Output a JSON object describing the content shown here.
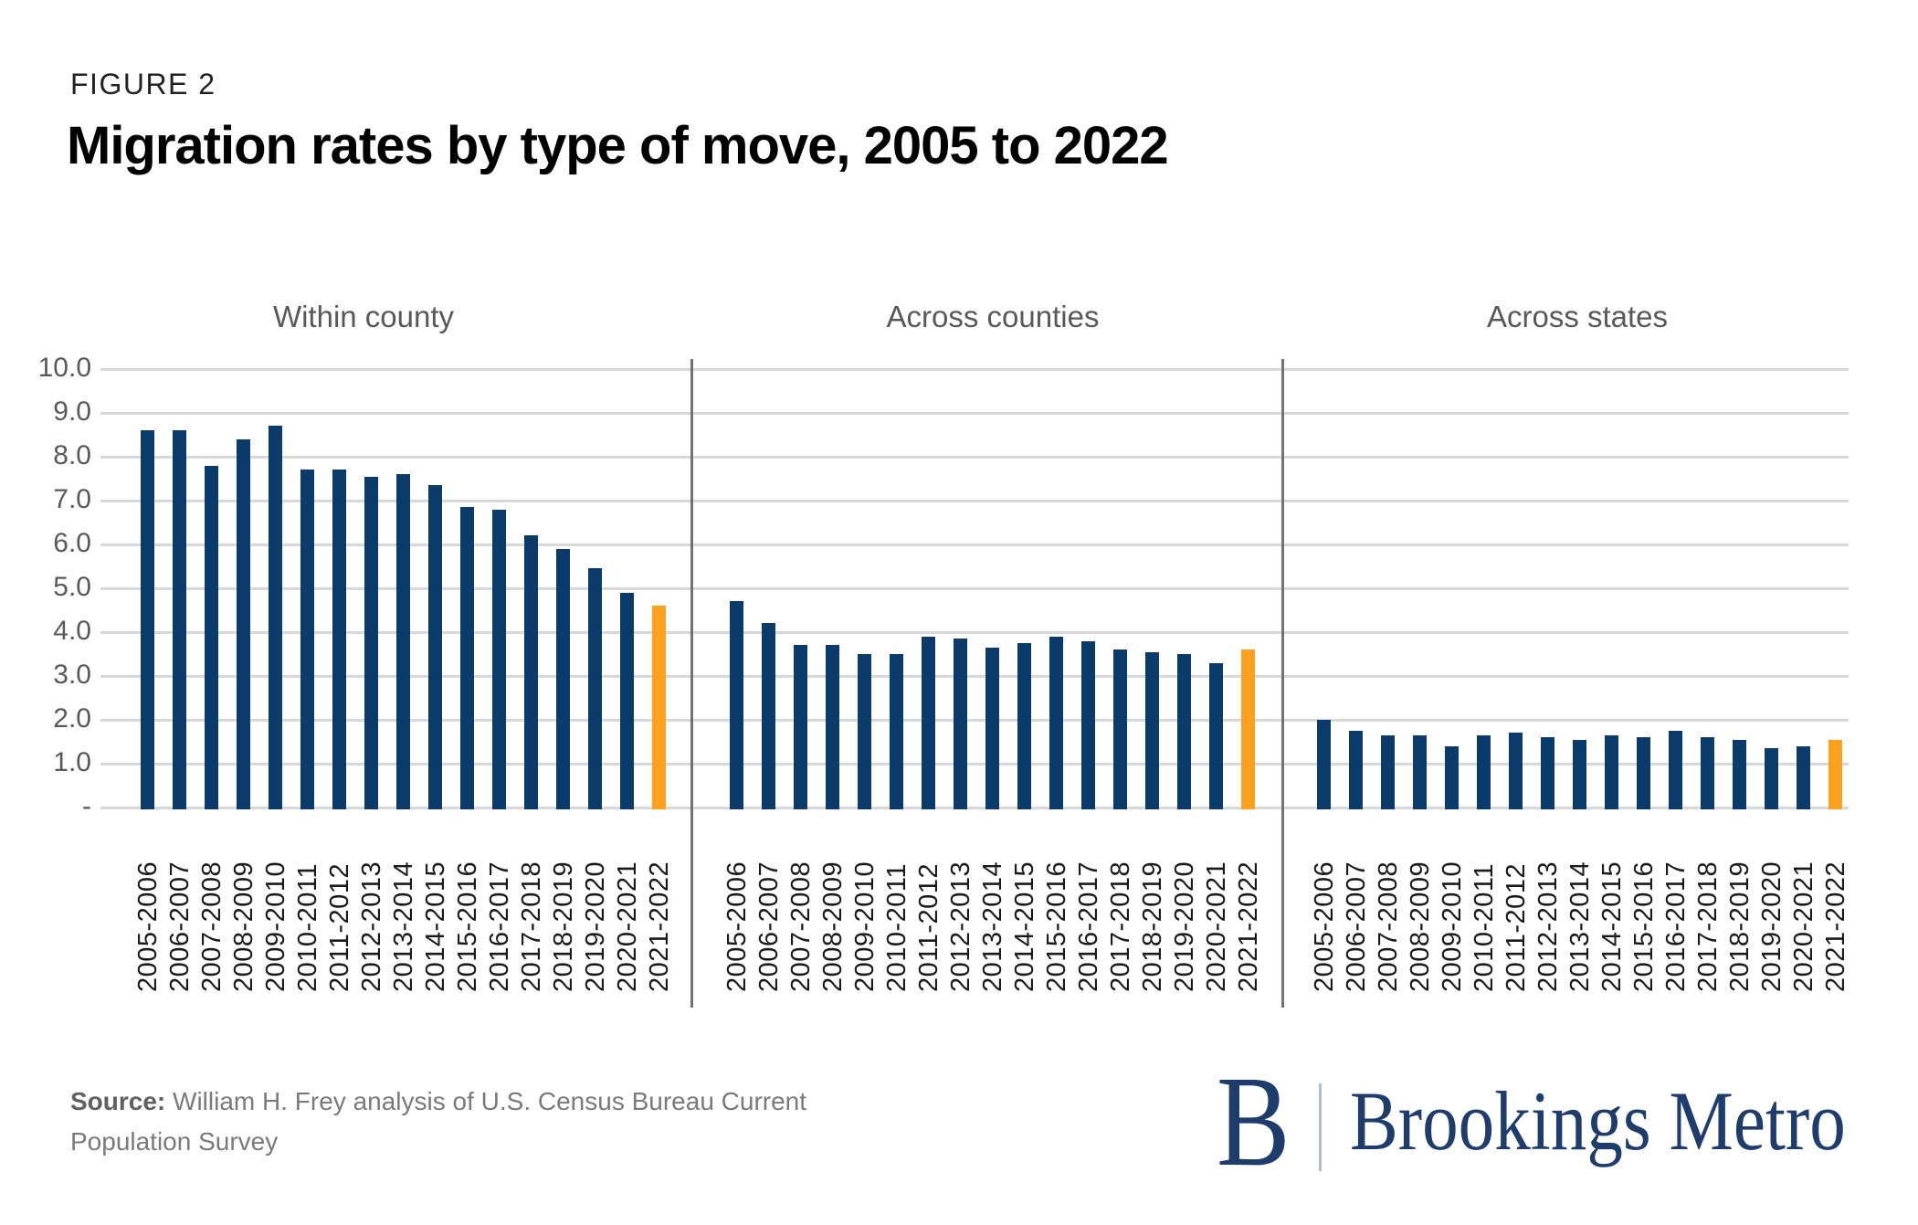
{
  "figure_label": "FIGURE 2",
  "title": "Migration rates by type of move, 2005 to 2022",
  "source": {
    "prefix": "Source:",
    "line1": "William H. Frey analysis of U.S. Census Bureau Current",
    "line2": "Population Survey"
  },
  "logo": {
    "monogram": "B",
    "name": "Brookings Metro"
  },
  "colors": {
    "bar": "#0B3B6B",
    "highlight": "#FFA01E",
    "gridline": "#D9D9D9",
    "separator": "#737373",
    "axis_text": "#595959",
    "xtick_text": "#1A1A1A",
    "logo_navy": "#1F3D6C"
  },
  "chart_data": {
    "type": "bar",
    "title": "Migration rates by type of move, 2005 to 2022",
    "categories": [
      "2005-2006",
      "2006-2007",
      "2007-2008",
      "2008-2009",
      "2009-2010",
      "2010-2011",
      "2011-2012",
      "2012-2013",
      "2013-2014",
      "2014-2015",
      "2015-2016",
      "2016-2017",
      "2017-2018",
      "2018-2019",
      "2019-2020",
      "2020-2021",
      "2021-2022"
    ],
    "panels": [
      {
        "label": "Within county",
        "values": [
          8.6,
          8.6,
          7.8,
          8.4,
          8.7,
          7.7,
          7.7,
          7.55,
          7.6,
          7.35,
          6.85,
          6.8,
          6.2,
          5.9,
          5.45,
          4.9,
          4.6
        ]
      },
      {
        "label": "Across counties",
        "values": [
          4.7,
          4.2,
          3.7,
          3.7,
          3.5,
          3.5,
          3.9,
          3.85,
          3.65,
          3.75,
          3.9,
          3.8,
          3.6,
          3.55,
          3.5,
          3.3,
          3.6
        ]
      },
      {
        "label": "Across states",
        "values": [
          2.0,
          1.75,
          1.65,
          1.65,
          1.4,
          1.65,
          1.7,
          1.6,
          1.55,
          1.65,
          1.6,
          1.75,
          1.6,
          1.55,
          1.35,
          1.4,
          1.55
        ]
      }
    ],
    "highlight_category": "2021-2022",
    "ylim": [
      0,
      10
    ],
    "ytick_step": 1.0,
    "ytick_labels": [
      "10.0",
      "9.0",
      "8.0",
      "7.0",
      "6.0",
      "5.0",
      "4.0",
      "3.0",
      "2.0",
      "1.0",
      "-"
    ],
    "grid": "horizontal",
    "legend": "none"
  }
}
